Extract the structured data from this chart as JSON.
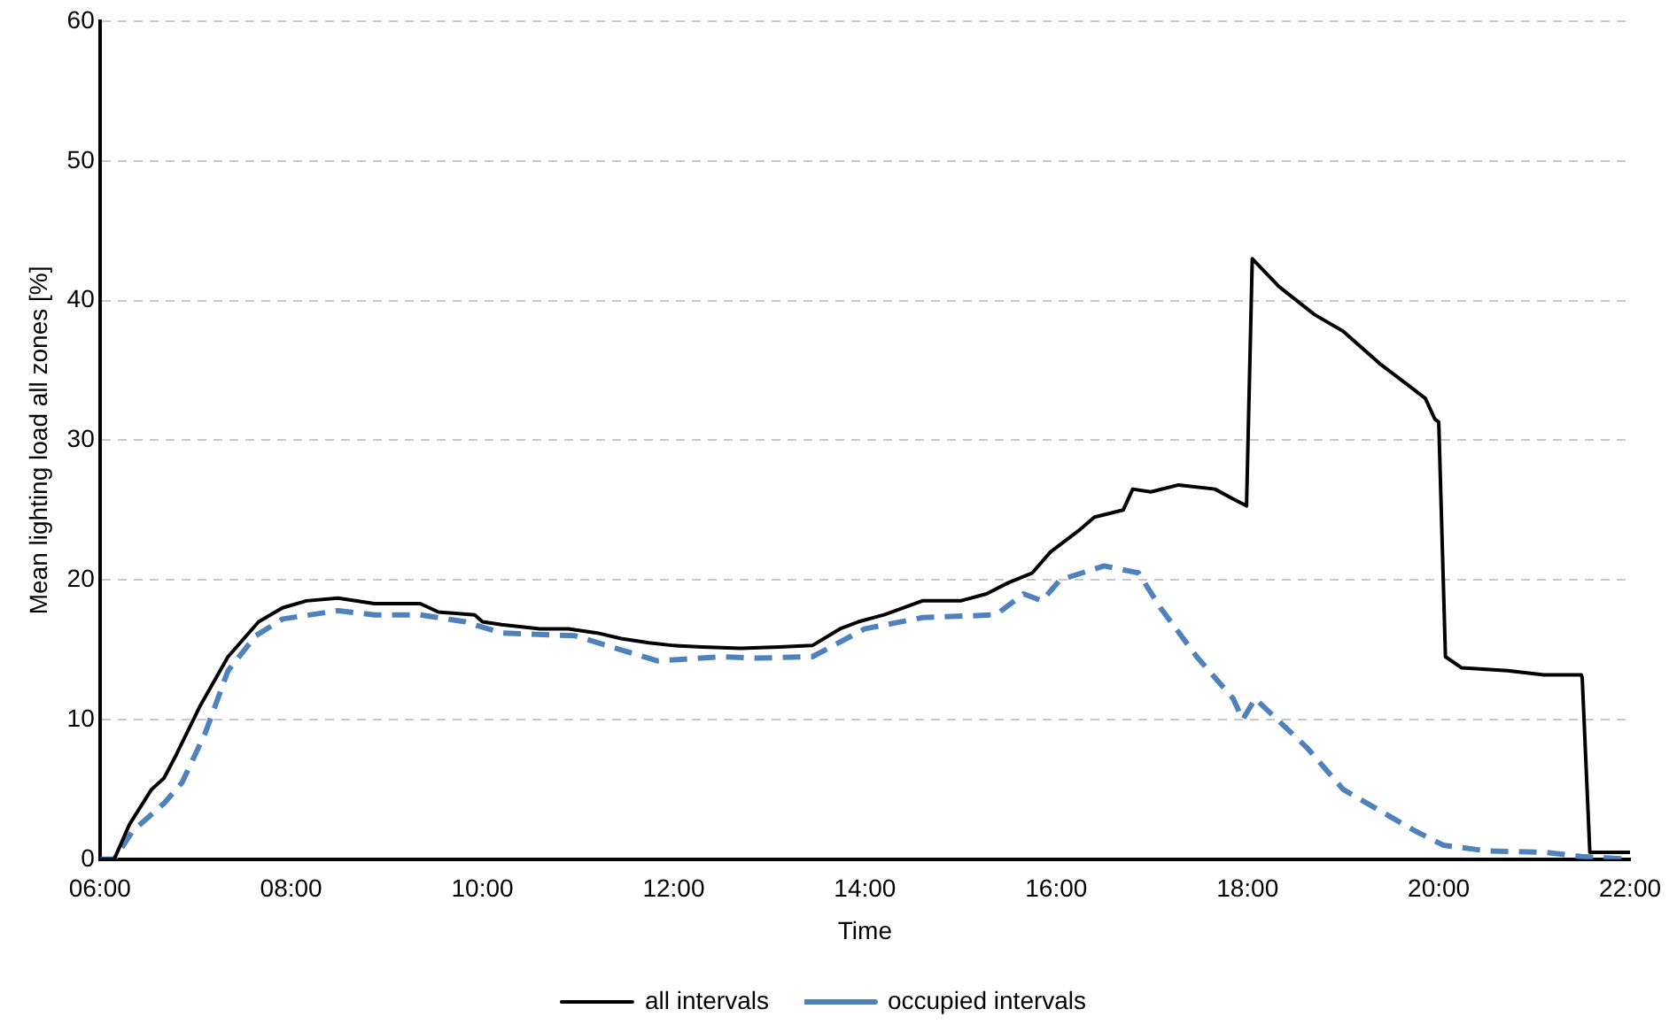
{
  "chart_data": {
    "type": "line",
    "xlabel": "Time",
    "ylabel": "Mean lighting load all zones [%]",
    "xlim": [
      6,
      22
    ],
    "xticks": [
      {
        "value": 6,
        "label": "06:00"
      },
      {
        "value": 8,
        "label": "08:00"
      },
      {
        "value": 10,
        "label": "10:00"
      },
      {
        "value": 12,
        "label": "12:00"
      },
      {
        "value": 14,
        "label": "14:00"
      },
      {
        "value": 16,
        "label": "16:00"
      },
      {
        "value": 18,
        "label": "18:00"
      },
      {
        "value": 20,
        "label": "20:00"
      },
      {
        "value": 22,
        "label": "22:00"
      }
    ],
    "ylim": [
      0,
      60
    ],
    "yticks": [
      0,
      10,
      20,
      30,
      40,
      50,
      60
    ],
    "grid": "y",
    "legend": "bottom",
    "marker": "none",
    "series": [
      {
        "name": "all intervals",
        "color": "#000000",
        "line_style": "solid",
        "x": [
          6,
          6.15,
          6.31,
          6.54,
          6.67,
          6.8,
          7.05,
          7.34,
          7.66,
          7.91,
          8.16,
          8.49,
          8.87,
          9.35,
          9.54,
          9.92,
          10,
          10.2,
          10.6,
          10.9,
          11.2,
          11.45,
          11.74,
          12,
          12.3,
          12.7,
          13.1,
          13.45,
          13.74,
          13.93,
          14.2,
          14.6,
          15,
          15.27,
          15.5,
          15.75,
          15.94,
          16.23,
          16.4,
          16.7,
          16.8,
          16.99,
          17.28,
          17.66,
          17.85,
          17.99,
          18.05,
          18.33,
          18.7,
          19,
          19.38,
          19.67,
          19.86,
          19.96,
          20,
          20.07,
          20.24,
          20.72,
          21.1,
          21.49,
          21.5,
          21.58,
          22
        ],
        "values": [
          0,
          0,
          2.5,
          5,
          5.8,
          7.5,
          11,
          14.5,
          17,
          18,
          18.5,
          18.7,
          18.3,
          18.3,
          17.7,
          17.5,
          17,
          16.8,
          16.5,
          16.5,
          16.2,
          15.8,
          15.5,
          15.3,
          15.2,
          15.1,
          15.2,
          15.3,
          16.5,
          17,
          17.5,
          18.5,
          18.5,
          19,
          19.8,
          20.5,
          22,
          23.5,
          24.5,
          25,
          26.5,
          26.3,
          26.8,
          26.5,
          25.8,
          25.3,
          43,
          41,
          39,
          37.8,
          35.5,
          34,
          33,
          31.5,
          31.3,
          14.5,
          13.7,
          13.5,
          13.2,
          13.2,
          13,
          0.5,
          0.5
        ]
      },
      {
        "name": "occupied intervals",
        "color": "#4f81bd",
        "line_style": "dashed",
        "x": [
          6,
          6.15,
          6.34,
          6.67,
          6.86,
          7.1,
          7.34,
          7.63,
          7.91,
          8.49,
          8.87,
          9.35,
          9.82,
          10.2,
          10.97,
          11.35,
          11.83,
          12.5,
          12.88,
          13.45,
          14,
          14.6,
          15.37,
          15.66,
          15.85,
          16.04,
          16.5,
          16.86,
          17.09,
          17.47,
          17.85,
          17.95,
          18.08,
          18.62,
          19,
          19.38,
          19.76,
          20.05,
          20.5,
          21.1,
          21.49,
          22
        ],
        "values": [
          0,
          0,
          2,
          4,
          5.5,
          9,
          13.5,
          16,
          17.2,
          17.8,
          17.5,
          17.5,
          17,
          16.2,
          16,
          15.2,
          14.2,
          14.5,
          14.4,
          14.5,
          16.5,
          17.3,
          17.5,
          19,
          18.5,
          20,
          21,
          20.5,
          18,
          14.5,
          11.5,
          10,
          11.5,
          8,
          5,
          3.5,
          2,
          1,
          0.6,
          0.5,
          0.2,
          0
        ]
      }
    ]
  }
}
